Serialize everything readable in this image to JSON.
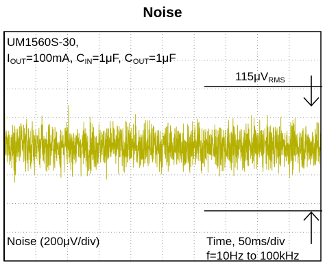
{
  "title": "Noise",
  "chart_data": {
    "type": "line",
    "description_labels": {
      "device": "UM1560S-30,",
      "conditions": {
        "i_main": "I",
        "i_sub": "OUT",
        "i_val": "=100mA, ",
        "cin_main": "C",
        "cin_sub": "IN",
        "cin_val": "=1μF, ",
        "cout_main": "C",
        "cout_sub": "OUT",
        "cout_val": "=1μF"
      }
    },
    "measurement": {
      "value": "115μV",
      "unit_sub": "RMS"
    },
    "y_scale_label": "Noise (200μV/div)",
    "x_scale_label": "Time, 50ms/div",
    "bandwidth_label": "f=10Hz to 100kHz",
    "grid": {
      "major": true,
      "minor_dots": true,
      "x_divisions": 10,
      "y_divisions": 8
    },
    "series": [
      {
        "trace_color": "#b5b000",
        "noise_rms_uV": 115,
        "noise_pp_uV": 690,
        "offset_uV": 0
      }
    ],
    "colors": {
      "frame": "#000000",
      "grid": "#9a9a9a",
      "trace": "#b5b000"
    }
  }
}
